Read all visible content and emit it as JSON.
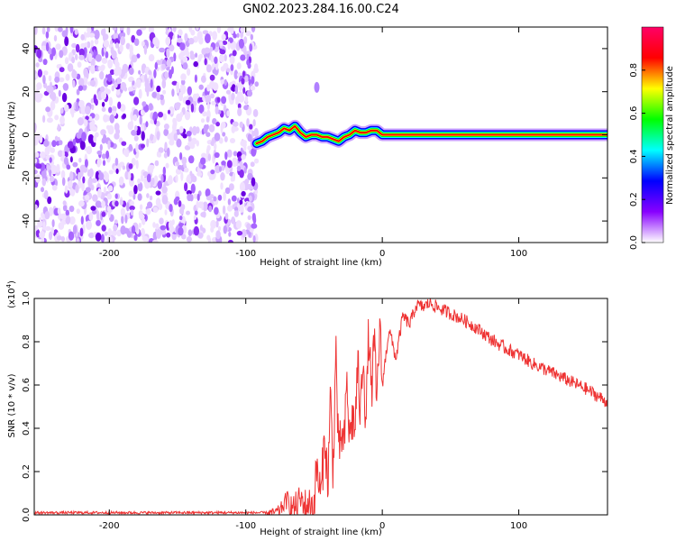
{
  "title": "GN02.2023.284.16.00.C24",
  "chart_data": [
    {
      "type": "heatmap",
      "name": "spectrogram",
      "xlabel": "Height of straight line (km)",
      "ylabel": "Frequency (Hz)",
      "xlim": [
        -255,
        165
      ],
      "ylim": [
        -50,
        50
      ],
      "xticks": [
        -200,
        -100,
        0,
        100
      ],
      "yticks": [
        -40,
        -20,
        0,
        20,
        40
      ],
      "noise_region_x": [
        -255,
        -92
      ],
      "trace": {
        "x": [
          -92,
          -88,
          -84,
          -80,
          -76,
          -72,
          -68,
          -64,
          -60,
          -56,
          -52,
          -48,
          -44,
          -40,
          -36,
          -32,
          -28,
          -24,
          -20,
          -16,
          -12,
          -8,
          -4,
          0,
          165
        ],
        "y": [
          -4,
          -3,
          -1,
          0,
          1,
          3,
          2,
          4,
          1,
          -1,
          0,
          0,
          -1,
          -1,
          -2,
          -3,
          -1,
          0,
          2,
          1,
          1,
          2,
          2,
          0,
          0
        ]
      },
      "colorbar": {
        "label": "Normalized spectral amplitude",
        "range": [
          0.0,
          1.0
        ],
        "ticks": [
          0.0,
          0.2,
          0.4,
          0.6,
          0.8
        ],
        "colors": [
          "#ffffff",
          "#8800ff",
          "#0000ff",
          "#00ffff",
          "#00ff00",
          "#ffff00",
          "#ff0000",
          "#ff0066"
        ]
      }
    },
    {
      "type": "line",
      "name": "snr",
      "xlabel": "Height of straight line (km)",
      "ylabel": "SNR (10 * v/v)",
      "scale_label": "(x10",
      "scale_exp": "4",
      "scale_close": ")",
      "xlim": [
        -255,
        165
      ],
      "ylim": [
        0.0,
        1.0
      ],
      "xticks": [
        -200,
        -100,
        0,
        100
      ],
      "yticks": [
        0.0,
        0.2,
        0.4,
        0.6,
        0.8,
        1.0
      ],
      "ytick_labels": [
        "0.0",
        "0.2",
        "0.4",
        "0.6",
        "0.8",
        "1.0"
      ],
      "color": "#ee3333",
      "series": {
        "x": [
          -255,
          -200,
          -150,
          -100,
          -80,
          -75,
          -70,
          -65,
          -60,
          -55,
          -50,
          -48,
          -45,
          -42,
          -40,
          -38,
          -36,
          -34,
          -32,
          -30,
          -28,
          -26,
          -24,
          -22,
          -20,
          -18,
          -16,
          -14,
          -12,
          -10,
          -8,
          -6,
          -4,
          -2,
          0,
          5,
          10,
          15,
          20,
          25,
          30,
          35,
          40,
          50,
          60,
          70,
          80,
          90,
          100,
          110,
          120,
          130,
          140,
          150,
          160,
          165
        ],
        "y": [
          0.01,
          0.01,
          0.01,
          0.01,
          0.01,
          0.02,
          0.07,
          0.03,
          0.07,
          0.03,
          0.05,
          0.22,
          0.08,
          0.38,
          0.12,
          0.55,
          0.2,
          0.78,
          0.25,
          0.38,
          0.3,
          0.62,
          0.35,
          0.45,
          0.4,
          0.7,
          0.45,
          0.78,
          0.4,
          0.85,
          0.55,
          0.8,
          0.5,
          0.88,
          0.6,
          0.86,
          0.72,
          0.92,
          0.88,
          0.97,
          0.96,
          0.98,
          0.96,
          0.93,
          0.9,
          0.86,
          0.81,
          0.77,
          0.74,
          0.7,
          0.67,
          0.64,
          0.61,
          0.58,
          0.54,
          0.52
        ]
      }
    }
  ]
}
